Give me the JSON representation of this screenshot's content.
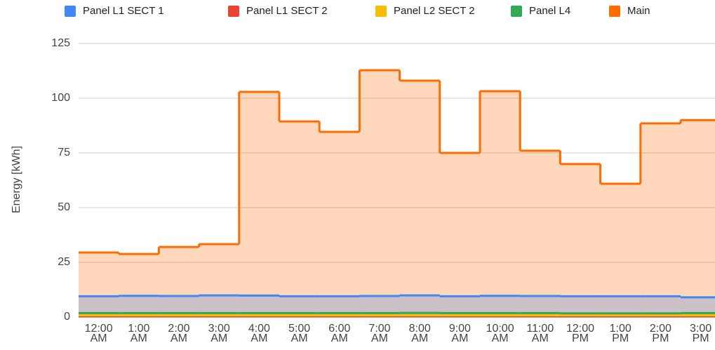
{
  "chart_data": {
    "type": "stepped_area",
    "y_axis_label": "Energy [kWh]",
    "categories": [
      "12:00 AM",
      "1:00 AM",
      "2:00 AM",
      "3:00 AM",
      "4:00 AM",
      "5:00 AM",
      "6:00 AM",
      "7:00 AM",
      "8:00 AM",
      "9:00 AM",
      "10:00 AM",
      "11:00 AM",
      "12:00 PM",
      "1:00 PM",
      "2:00 PM",
      "3:00 PM"
    ],
    "series": [
      {
        "name": "Panel L1 SECT 1",
        "color": "#4285f4",
        "values": [
          9.5,
          9.7,
          9.6,
          9.9,
          9.8,
          9.5,
          9.5,
          9.6,
          9.9,
          9.5,
          9.7,
          9.6,
          9.5,
          9.5,
          9.5,
          9.0
        ]
      },
      {
        "name": "Panel L1 SECT 2",
        "color": "#ea4335",
        "values": [
          0.3,
          0.3,
          0.3,
          0.3,
          0.3,
          0.3,
          0.3,
          0.3,
          0.3,
          0.3,
          0.3,
          0.3,
          0.3,
          0.3,
          0.3,
          0.3
        ]
      },
      {
        "name": "Panel L2 SECT 2",
        "color": "#fbbc04",
        "values": [
          0.8,
          0.8,
          0.8,
          0.8,
          0.8,
          0.8,
          0.8,
          0.8,
          0.8,
          0.8,
          0.8,
          0.8,
          0.8,
          0.8,
          0.8,
          0.8
        ]
      },
      {
        "name": "Panel L4",
        "color": "#34a853",
        "values": [
          1.8,
          1.8,
          1.8,
          1.8,
          1.8,
          1.8,
          1.8,
          1.8,
          1.9,
          1.8,
          1.8,
          1.8,
          1.7,
          1.7,
          1.7,
          1.8
        ]
      },
      {
        "name": "Main",
        "color": "#ff6d01",
        "values": [
          29.5,
          28.8,
          32,
          33.3,
          102.9,
          89.4,
          84.6,
          112.8,
          108,
          75,
          103.2,
          76,
          69.9,
          60.9,
          88.5,
          90
        ]
      }
    ],
    "ylim": [
      0,
      125
    ],
    "yticks": [
      0,
      25,
      50,
      75,
      100,
      125
    ],
    "grid": true,
    "legend": "top"
  }
}
